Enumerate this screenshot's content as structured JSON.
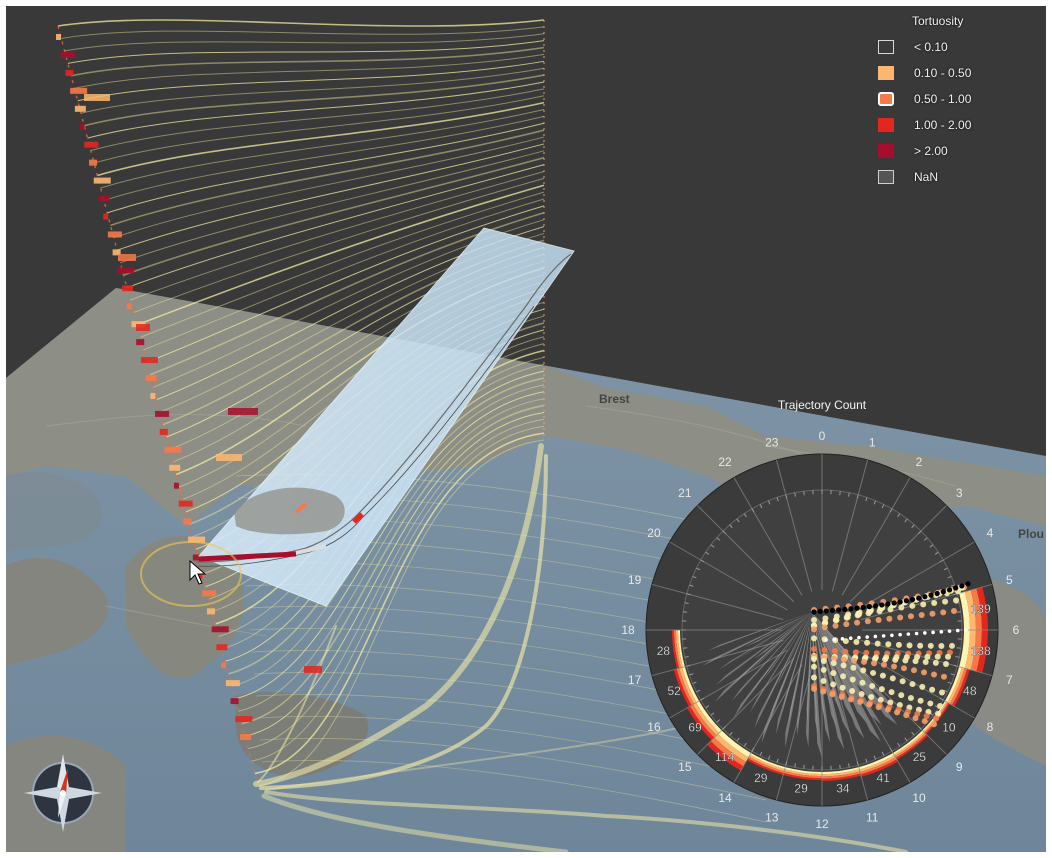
{
  "legend": {
    "title": "Tortuosity",
    "items": [
      {
        "label": "< 0.10",
        "color": "#3a3a3a",
        "style": "outline"
      },
      {
        "label": "0.10 - 0.50",
        "color": "#fdb870"
      },
      {
        "label": "0.50 - 1.00",
        "color": "#f47a4a",
        "selected": true
      },
      {
        "label": "1.00 - 2.00",
        "color": "#e3271f"
      },
      {
        "label": "> 2.00",
        "color": "#a50f2c"
      },
      {
        "label": "NaN",
        "color": "#555555",
        "style": "outline"
      }
    ]
  },
  "radial_chart": {
    "title": "Trajectory Count",
    "hour_labels": [
      "0",
      "1",
      "2",
      "3",
      "4",
      "5",
      "6",
      "7",
      "8",
      "9",
      "10",
      "11",
      "12",
      "13",
      "14",
      "15",
      "16",
      "17",
      "18",
      "19",
      "20",
      "21",
      "22",
      "23"
    ],
    "counts": [
      {
        "hour": 5,
        "label": "139"
      },
      {
        "hour": 6,
        "label": "138"
      },
      {
        "hour": 7,
        "label": "48"
      },
      {
        "hour": 8,
        "label": "10"
      },
      {
        "hour": 9,
        "label": "25"
      },
      {
        "hour": 10,
        "label": "41"
      },
      {
        "hour": 11,
        "label": "34"
      },
      {
        "hour": 12,
        "label": "29"
      },
      {
        "hour": 13,
        "label": "29"
      },
      {
        "hour": 14,
        "label": "114"
      },
      {
        "hour": 15,
        "label": "69"
      },
      {
        "hour": 16,
        "label": "52"
      },
      {
        "hour": 17,
        "label": "28"
      }
    ]
  },
  "map": {
    "place_labels": [
      "Brest",
      "Plou"
    ]
  },
  "colors": {
    "background": "#3a3a3a",
    "trajectory": "#f3eba0",
    "slice_plane": "#cfe6f7",
    "ring": "#f2c84f"
  },
  "icons": [
    "compass-icon",
    "mouse-pointer-icon"
  ]
}
